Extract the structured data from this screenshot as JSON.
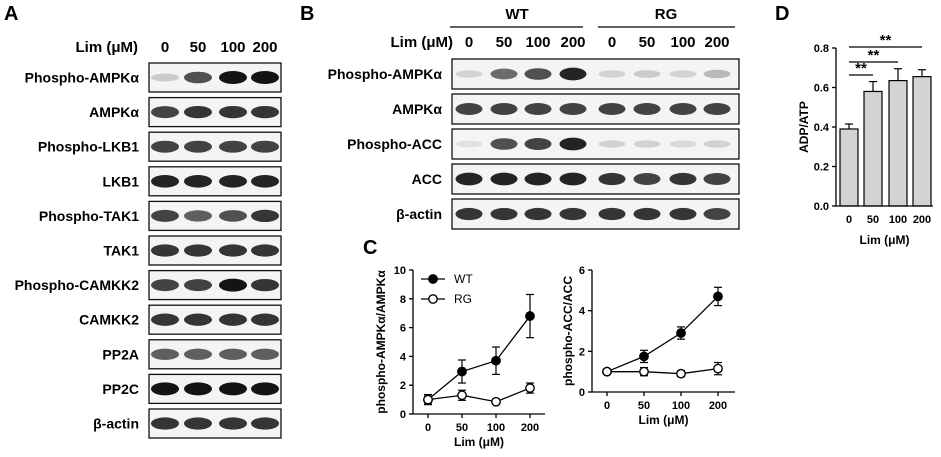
{
  "panels": {
    "A": {
      "letter": "A",
      "conc_label": "Lim (μM)",
      "concentrations": [
        "0",
        "50",
        "100",
        "200"
      ],
      "rows": [
        {
          "label": "Phospho-AMPKα",
          "intensity": [
            0.25,
            0.8,
            1.0,
            1.0
          ]
        },
        {
          "label": "AMPKα",
          "intensity": [
            0.85,
            0.9,
            0.9,
            0.9
          ]
        },
        {
          "label": "Phospho-LKB1",
          "intensity": [
            0.85,
            0.85,
            0.85,
            0.85
          ]
        },
        {
          "label": "LKB1",
          "intensity": [
            0.95,
            0.95,
            0.95,
            0.95
          ]
        },
        {
          "label": "Phospho-TAK1",
          "intensity": [
            0.85,
            0.75,
            0.8,
            0.9
          ]
        },
        {
          "label": "TAK1",
          "intensity": [
            0.9,
            0.9,
            0.9,
            0.9
          ]
        },
        {
          "label": "Phospho-CAMKK2",
          "intensity": [
            0.85,
            0.85,
            1.0,
            0.9
          ]
        },
        {
          "label": "CAMKK2",
          "intensity": [
            0.9,
            0.9,
            0.9,
            0.9
          ]
        },
        {
          "label": "PP2A",
          "intensity": [
            0.75,
            0.75,
            0.75,
            0.75
          ]
        },
        {
          "label": "PP2C",
          "intensity": [
            1.0,
            1.0,
            1.0,
            1.0
          ]
        },
        {
          "label": "β-actin",
          "intensity": [
            0.9,
            0.9,
            0.9,
            0.9
          ]
        }
      ]
    },
    "B": {
      "letter": "B",
      "groups": [
        "WT",
        "RG"
      ],
      "conc_label": "Lim (μM)",
      "concentrations": [
        "0",
        "50",
        "100",
        "200",
        "0",
        "50",
        "100",
        "200"
      ],
      "rows": [
        {
          "label": "Phospho-AMPKα",
          "intensity": [
            0.2,
            0.7,
            0.8,
            0.95,
            0.2,
            0.25,
            0.2,
            0.35
          ]
        },
        {
          "label": "AMPKα",
          "intensity": [
            0.85,
            0.85,
            0.85,
            0.85,
            0.85,
            0.85,
            0.85,
            0.85
          ]
        },
        {
          "label": "Phospho-ACC",
          "intensity": [
            0.1,
            0.8,
            0.85,
            0.95,
            0.2,
            0.2,
            0.15,
            0.2
          ]
        },
        {
          "label": "ACC",
          "intensity": [
            0.95,
            0.95,
            0.95,
            0.95,
            0.9,
            0.85,
            0.9,
            0.85
          ]
        },
        {
          "label": "β-actin",
          "intensity": [
            0.9,
            0.9,
            0.9,
            0.9,
            0.9,
            0.9,
            0.9,
            0.85
          ]
        }
      ]
    },
    "C": {
      "letter": "C"
    },
    "D": {
      "letter": "D"
    }
  },
  "chart_data": [
    {
      "id": "C-left",
      "type": "line",
      "xlabel": "Lim (μM)",
      "ylabel": "phospho-AMPKα/AMPKα",
      "x_categories": [
        "0",
        "50",
        "100",
        "200"
      ],
      "ylim": [
        0,
        10
      ],
      "yticks": [
        "0",
        "2",
        "4",
        "6",
        "8",
        "10"
      ],
      "legend": {
        "placement": "top-left"
      },
      "series": [
        {
          "name": "WT",
          "marker": "filled-circle",
          "values": [
            1.0,
            2.95,
            3.7,
            6.8
          ],
          "errors": [
            0.35,
            0.8,
            0.95,
            1.5
          ]
        },
        {
          "name": "RG",
          "marker": "open-circle",
          "values": [
            1.0,
            1.3,
            0.85,
            1.8
          ],
          "errors": [
            0.25,
            0.35,
            0.15,
            0.35
          ]
        }
      ]
    },
    {
      "id": "C-right",
      "type": "line",
      "xlabel": "Lim (μM)",
      "ylabel": "phospho-ACC/ACC",
      "x_categories": [
        "0",
        "50",
        "100",
        "200"
      ],
      "ylim": [
        0,
        6
      ],
      "yticks": [
        "0",
        "2",
        "4",
        "6"
      ],
      "series": [
        {
          "name": "WT",
          "marker": "filled-circle",
          "values": [
            1.0,
            1.75,
            2.9,
            4.7
          ],
          "errors": [
            0.05,
            0.3,
            0.3,
            0.45
          ]
        },
        {
          "name": "RG",
          "marker": "open-circle",
          "values": [
            1.0,
            1.0,
            0.9,
            1.15
          ],
          "errors": [
            0.05,
            0.2,
            0.15,
            0.3
          ]
        }
      ]
    },
    {
      "id": "D",
      "type": "bar",
      "xlabel": "Lim (μM)",
      "ylabel": "ADP/ATP",
      "categories": [
        "0",
        "50",
        "100",
        "200"
      ],
      "values": [
        0.39,
        0.58,
        0.635,
        0.655
      ],
      "errors": [
        0.025,
        0.05,
        0.06,
        0.035
      ],
      "ylim": [
        0,
        0.8
      ],
      "yticks": [
        "0.0",
        "0.2",
        "0.4",
        "0.6",
        "0.8"
      ],
      "bar_color": "#d3d3d3",
      "significance": [
        {
          "from": "0",
          "to": "50",
          "label": "**"
        },
        {
          "from": "0",
          "to": "100",
          "label": "**"
        },
        {
          "from": "0",
          "to": "200",
          "label": "**"
        }
      ]
    }
  ]
}
